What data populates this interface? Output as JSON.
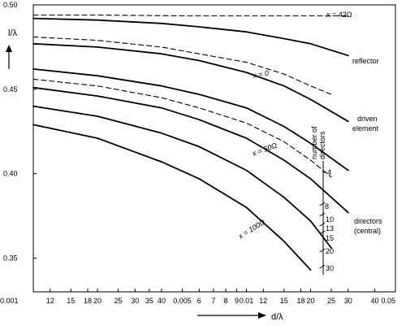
{
  "chart_data": {
    "type": "line",
    "xlabel": "d/λ",
    "ylabel": "l/λ",
    "x_tick_labels": [
      "0.001",
      "12",
      "15",
      "18",
      "20",
      "25",
      "30",
      "35",
      "40",
      "0.005",
      "6",
      "7",
      "8",
      "9",
      "0.01",
      "12",
      "15",
      "18",
      "20",
      "25",
      "30",
      "40",
      "0.05"
    ],
    "y_tick_labels": [
      "0.50",
      "0.45",
      "0.40",
      "0.35"
    ],
    "ylim": [
      0.33,
      0.5
    ],
    "grid": false,
    "legend": "none",
    "series": [
      {
        "name": "x = 42Ω",
        "dashed": true,
        "x": [
          0.001,
          0.002,
          0.005,
          0.01,
          0.02,
          0.03
        ],
        "y": [
          0.494,
          0.494,
          0.4935,
          0.4935,
          0.4935,
          0.4935
        ]
      },
      {
        "name": "",
        "dashed": false,
        "x": [
          0.001,
          0.002,
          0.004,
          0.006,
          0.01,
          0.015,
          0.02,
          0.03
        ],
        "y": [
          0.492,
          0.491,
          0.489,
          0.487,
          0.484,
          0.48,
          0.477,
          0.47
        ]
      },
      {
        "name": "x = 0",
        "dashed": true,
        "x": [
          0.001,
          0.002,
          0.004,
          0.006,
          0.01,
          0.015,
          0.02,
          0.025
        ],
        "y": [
          0.481,
          0.479,
          0.475,
          0.471,
          0.466,
          0.459,
          0.452,
          0.447
        ]
      },
      {
        "name": "",
        "dashed": false,
        "x": [
          0.001,
          0.002,
          0.004,
          0.006,
          0.01,
          0.015,
          0.02,
          0.03
        ],
        "y": [
          0.477,
          0.475,
          0.471,
          0.467,
          0.46,
          0.452,
          0.444,
          0.431
        ]
      },
      {
        "name": "",
        "dashed": false,
        "x": [
          0.001,
          0.002,
          0.004,
          0.006,
          0.01,
          0.015,
          0.02,
          0.03
        ],
        "y": [
          0.462,
          0.458,
          0.452,
          0.447,
          0.439,
          0.428,
          0.418,
          0.402
        ]
      },
      {
        "name": "x = 50Ω",
        "dashed": true,
        "x": [
          0.001,
          0.002,
          0.004,
          0.006,
          0.01,
          0.015,
          0.02,
          0.025
        ],
        "y": [
          0.456,
          0.452,
          0.445,
          0.439,
          0.43,
          0.419,
          0.408,
          0.398
        ]
      },
      {
        "name": "",
        "dashed": false,
        "x": [
          0.001,
          0.002,
          0.004,
          0.006,
          0.01,
          0.015,
          0.02,
          0.03
        ],
        "y": [
          0.451,
          0.446,
          0.439,
          0.432,
          0.421,
          0.408,
          0.397,
          0.377
        ]
      },
      {
        "name": "",
        "dashed": false,
        "x": [
          0.001,
          0.002,
          0.004,
          0.006,
          0.01,
          0.015,
          0.02,
          0.025
        ],
        "y": [
          0.44,
          0.434,
          0.424,
          0.416,
          0.402,
          0.386,
          0.372,
          0.356
        ]
      },
      {
        "name": "x = 100Ω",
        "dashed": false,
        "x": [
          0.001,
          0.002,
          0.004,
          0.006,
          0.01,
          0.015,
          0.02
        ],
        "y": [
          0.429,
          0.421,
          0.407,
          0.397,
          0.38,
          0.36,
          0.343
        ]
      }
    ],
    "annotations": {
      "label_42": "x = 42Ω",
      "label_0": "x = 0",
      "label_50": "x = 50Ω",
      "label_100": "x = 100Ω",
      "reflector": "reflector",
      "driven_1": "driven",
      "driven_2": "element",
      "directors_1": "directors",
      "directors_2": "(central)",
      "number_of_directors_1": "number of",
      "number_of_directors_2": "directors",
      "director_counts": [
        "4",
        "8",
        "10",
        "13",
        "15",
        "20",
        "30"
      ]
    }
  }
}
